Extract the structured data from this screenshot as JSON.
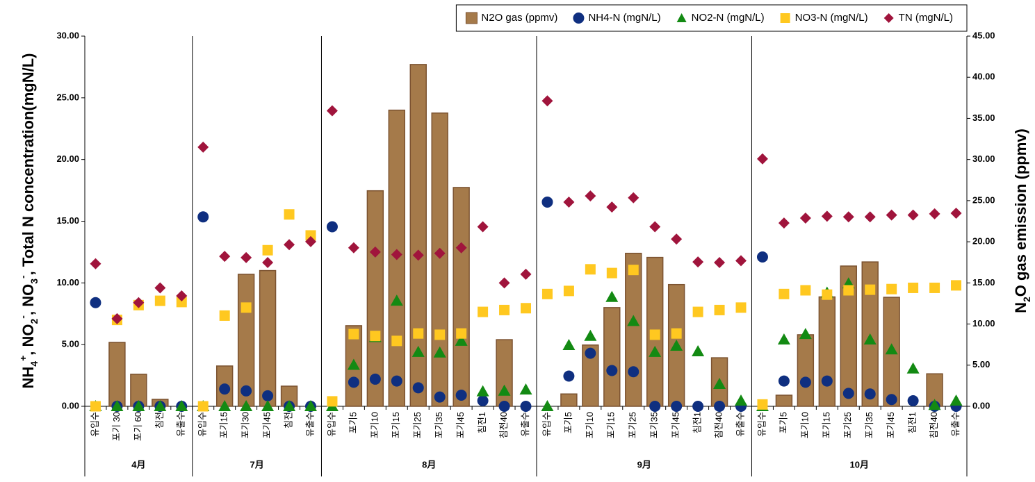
{
  "chart_data": {
    "type": "combo",
    "category_groups": [
      {
        "name": "4月",
        "categories": [
          "유입수",
          "포기 30",
          "포기 60",
          "침전",
          "유출수"
        ]
      },
      {
        "name": "7月",
        "categories": [
          "유입수",
          "포기15",
          "포기30",
          "포기45",
          "침전",
          "유출수"
        ]
      },
      {
        "name": "8月",
        "categories": [
          "유입수",
          "포기5",
          "포기10",
          "포기15",
          "포기25",
          "포기35",
          "포기45",
          "침전1",
          "침전40",
          "유출수"
        ]
      },
      {
        "name": "9月",
        "categories": [
          "유입수",
          "포기5",
          "포기10",
          "포기15",
          "포기25",
          "포기35",
          "포기45",
          "침전1",
          "침전40",
          "유출수"
        ]
      },
      {
        "name": "10月",
        "categories": [
          "유입수",
          "포기5",
          "포기10",
          "포기15",
          "포기25",
          "포기35",
          "포기45",
          "침전1",
          "침전40",
          "유출수"
        ]
      }
    ],
    "series": [
      {
        "name": "N2O gas (ppmv)",
        "type": "bar",
        "axis": "y2",
        "color": "#a57a4a",
        "edge_color": "#7b5230",
        "values": [
          null,
          7.77,
          3.9,
          0.85,
          null,
          null,
          4.9,
          16.05,
          16.5,
          2.45,
          null,
          null,
          9.8,
          26.2,
          36.0,
          41.55,
          35.65,
          26.6,
          null,
          8.1,
          null,
          null,
          1.5,
          7.45,
          12.0,
          18.6,
          18.1,
          14.8,
          null,
          5.9,
          null,
          null,
          1.35,
          8.7,
          13.3,
          17.05,
          17.55,
          13.25,
          null,
          3.95,
          null
        ]
      },
      {
        "name": "NH4-N (mgN/L)",
        "type": "scatter",
        "marker": "circle",
        "color": "#0f2f80",
        "values": [
          8.4,
          0,
          0,
          0,
          0,
          15.35,
          1.4,
          1.25,
          0.85,
          0,
          0,
          14.55,
          1.95,
          2.2,
          2.05,
          1.5,
          0.75,
          0.9,
          0.45,
          0,
          0,
          16.55,
          2.45,
          4.3,
          2.9,
          2.8,
          0,
          0,
          0,
          0,
          0,
          12.1,
          2.05,
          1.95,
          2.05,
          1.05,
          1.0,
          0.55,
          0.45,
          0,
          0
        ]
      },
      {
        "name": "NO2-N (mgN/L)",
        "type": "scatter",
        "marker": "triangle",
        "color": "#138a13",
        "values": [
          0,
          0,
          0,
          0,
          0,
          0,
          0,
          0,
          0,
          0,
          0,
          0,
          3.35,
          5.6,
          8.55,
          4.4,
          4.35,
          5.3,
          1.2,
          1.25,
          1.35,
          0,
          4.95,
          5.7,
          8.85,
          6.9,
          4.4,
          4.9,
          4.45,
          1.8,
          0.45,
          0,
          5.4,
          5.85,
          9.2,
          9.95,
          5.4,
          4.6,
          3.05,
          0.1,
          0.45
        ]
      },
      {
        "name": "NO3-N (mgN/L)",
        "type": "scatter",
        "marker": "square",
        "color": "#ffc820",
        "values": [
          0,
          7.0,
          8.2,
          8.55,
          8.45,
          0,
          7.35,
          8.0,
          12.65,
          15.55,
          13.85,
          0.4,
          5.85,
          5.7,
          5.3,
          5.9,
          5.8,
          5.9,
          7.65,
          7.8,
          7.95,
          9.1,
          9.35,
          11.1,
          10.8,
          11.05,
          5.8,
          5.9,
          7.65,
          7.8,
          8.0,
          0.15,
          9.1,
          9.4,
          9.05,
          9.4,
          9.45,
          9.5,
          9.6,
          9.6,
          9.8
        ]
      },
      {
        "name": "TN (mgN/L)",
        "type": "scatter",
        "marker": "diamond",
        "color": "#a0143c",
        "values": [
          11.55,
          7.1,
          8.4,
          9.6,
          8.95,
          21.0,
          12.15,
          12.05,
          11.65,
          13.1,
          13.35,
          23.95,
          12.85,
          12.5,
          12.3,
          12.25,
          12.4,
          12.85,
          14.55,
          10.0,
          10.7,
          24.75,
          16.55,
          17.05,
          16.15,
          16.9,
          14.55,
          13.55,
          11.7,
          11.65,
          11.8,
          20.05,
          14.85,
          15.25,
          15.4,
          15.35,
          15.35,
          15.5,
          15.5,
          15.6,
          15.65
        ]
      }
    ],
    "ylabel": [
      {
        "text": "NH",
        "style": "normal"
      },
      {
        "text": "4",
        "style": "sub"
      },
      {
        "text": "+",
        "style": "sup"
      },
      {
        "text": ", NO",
        "style": "normal"
      },
      {
        "text": "2",
        "style": "sub"
      },
      {
        "text": "-",
        "style": "sup"
      },
      {
        "text": ", NO",
        "style": "normal"
      },
      {
        "text": "3",
        "style": "sub"
      },
      {
        "text": "-",
        "style": "sup"
      },
      {
        "text": ", Total N concentration(mgN/L)",
        "style": "normal"
      }
    ],
    "y2label": [
      {
        "text": "N",
        "style": "normal"
      },
      {
        "text": "2",
        "style": "sub"
      },
      {
        "text": "O gas emission (ppmv)",
        "style": "normal"
      }
    ],
    "ylim": [
      0,
      30
    ],
    "yticks": [
      {
        "value": 0,
        "label": "0.00"
      },
      {
        "value": 5,
        "label": "5.00"
      },
      {
        "value": 10,
        "label": "10.00"
      },
      {
        "value": 15,
        "label": "15.00"
      },
      {
        "value": 20,
        "label": "20.00"
      },
      {
        "value": 25,
        "label": "25.00"
      },
      {
        "value": 30,
        "label": "30.00"
      }
    ],
    "y2lim": [
      0,
      45
    ],
    "y2ticks": [
      {
        "value": 0,
        "label": "0.00"
      },
      {
        "value": 5,
        "label": "5.00"
      },
      {
        "value": 10,
        "label": "10.00"
      },
      {
        "value": 15,
        "label": "15.00"
      },
      {
        "value": 20,
        "label": "20.00"
      },
      {
        "value": 25,
        "label": "25.00"
      },
      {
        "value": 30,
        "label": "30.00"
      },
      {
        "value": 35,
        "label": "35.00"
      },
      {
        "value": 40,
        "label": "40.00"
      },
      {
        "value": 45,
        "label": "45.00"
      }
    ],
    "grid": false,
    "legend_position": "top-right"
  }
}
